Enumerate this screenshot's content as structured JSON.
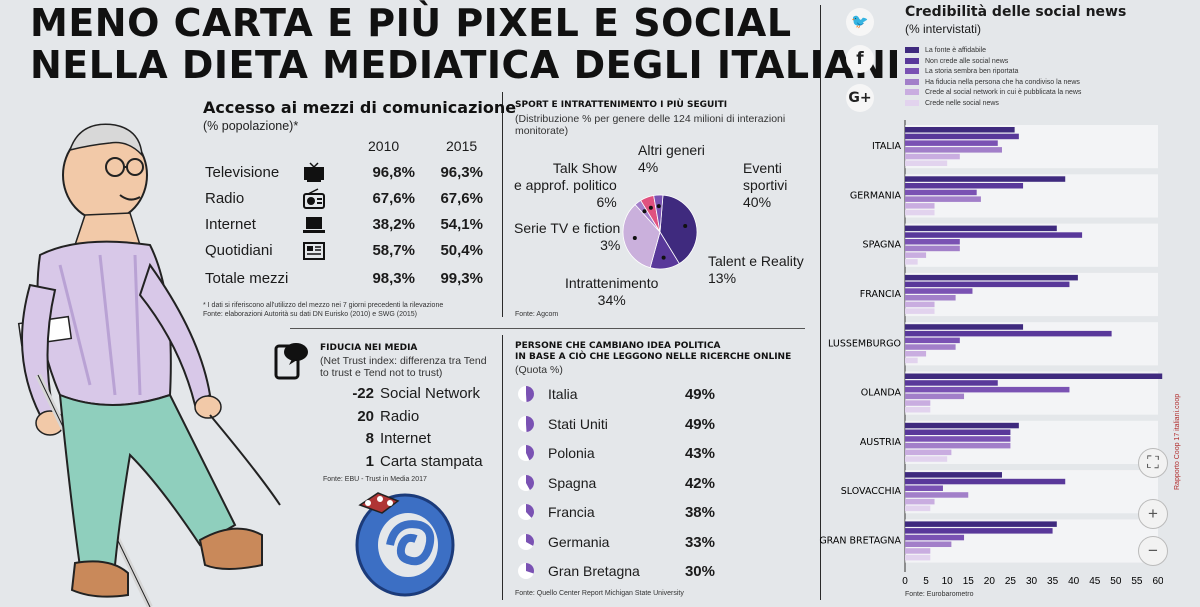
{
  "title": [
    "MENO CARTA E PIÙ PIXEL E SOCIAL",
    "NELLA DIETA MEDIATICA DEGLI ITALIANI"
  ],
  "accesso": {
    "title": "Accesso ai mezzi di comunicazione",
    "subtitle": "(% popolazione)*",
    "years": [
      "2010",
      "2015"
    ],
    "rows": [
      {
        "label": "Televisione",
        "icon": "tv-icon",
        "v2010": "96,8%",
        "v2015": "96,3%"
      },
      {
        "label": "Radio",
        "icon": "radio-icon",
        "v2010": "67,6%",
        "v2015": "67,6%"
      },
      {
        "label": "Internet",
        "icon": "laptop-icon",
        "v2010": "38,2%",
        "v2015": "54,1%"
      },
      {
        "label": "Quotidiani",
        "icon": "newspaper-icon",
        "v2010": "58,7%",
        "v2015": "50,4%"
      },
      {
        "label": "Totale mezzi",
        "icon": "",
        "v2010": "98,3%",
        "v2015": "99,3%"
      }
    ],
    "note1": "* I dati si riferiscono all'utilizzo del mezzo nei 7 giorni precedenti la rilevazione",
    "note2": "Fonte: elaborazioni Autorità su dati DN Eurisko (2010) e SWG (2015)"
  },
  "sport": {
    "title": "SPORT E INTRATTENIMENTO I PIÙ SEGUITI",
    "subtitle": "(Distribuzione % per genere delle 124 milioni di interazioni monitorate)",
    "source": "Fonte: Agcom"
  },
  "fiducia": {
    "title": "FIDUCIA NEI MEDIA",
    "subtitle": "(Net Trust index: differenza tra Tend to trust e Tend not to trust)",
    "items": [
      {
        "value": "-22",
        "label": "Social Network"
      },
      {
        "value": "20",
        "label": "Radio"
      },
      {
        "value": "8",
        "label": "Internet"
      },
      {
        "value": "1",
        "label": "Carta stampata"
      }
    ],
    "source": "Fonte: EBU - Trust in Media 2017"
  },
  "persone": {
    "title1": "PERSONE CHE CAMBIANO IDEA POLITICA",
    "title2": "IN BASE A CIÒ CHE LEGGONO NELLE RICERCHE ONLINE",
    "subtitle": "(Quota %)",
    "items": [
      {
        "country": "Italia",
        "pct": "49%",
        "value": 49
      },
      {
        "country": "Stati Uniti",
        "pct": "49%",
        "value": 49
      },
      {
        "country": "Polonia",
        "pct": "43%",
        "value": 43
      },
      {
        "country": "Spagna",
        "pct": "42%",
        "value": 42
      },
      {
        "country": "Francia",
        "pct": "38%",
        "value": 38
      },
      {
        "country": "Germania",
        "pct": "33%",
        "value": 33
      },
      {
        "country": "Gran Bretagna",
        "pct": "30%",
        "value": 30
      }
    ],
    "source": "Fonte: Quello Center Report Michigan State University"
  },
  "social_icons": [
    "twitter-icon",
    "facebook-icon",
    "google-plus-icon"
  ],
  "social_glyphs": {
    "twitter": "🐦",
    "facebook": "f",
    "gplus": "G+"
  },
  "credibilita": {
    "title": "Credibilità delle social news",
    "subtitle": "(% intervistati)",
    "source": "Fonte: Eurobarometro",
    "side_credit": "Rapporto Coop 17  italiani.coop"
  },
  "zoom": {
    "fit": "⛶",
    "plus": "+",
    "minus": "−"
  },
  "colors": {
    "purple1": "#3f2a7e",
    "purple2": "#59389a",
    "purple3": "#7a52b3",
    "purple4": "#a27fc9",
    "purple5": "#c9ade0",
    "purple6": "#e2d3ee",
    "pie_pink": "#e0517f",
    "pie_light": "#cab0dc"
  },
  "chart_data": [
    {
      "type": "pie",
      "categories": [
        "Eventi sportivi",
        "Talent e Reality",
        "Intrattenimento",
        "Serie TV e fiction",
        "Talk Show e approf. politico",
        "Altri generi"
      ],
      "values": [
        40,
        13,
        34,
        3,
        6,
        4
      ],
      "labels": [
        "Eventi\nsportivi\n40%",
        "Talent e Reality\n13%",
        "Intrattenimento\n34%",
        "Serie TV e fiction\n3%",
        "Talk Show\ne approf. politico\n6%",
        "Altri generi\n4%"
      ]
    },
    {
      "type": "bar",
      "orientation": "horizontal",
      "categories": [
        "ITALIA",
        "GERMANIA",
        "SPAGNA",
        "FRANCIA",
        "LUSSEMBURGO",
        "OLANDA",
        "AUSTRIA",
        "SLOVACCHIA",
        "GRAN BRETAGNA"
      ],
      "xlim": [
        0,
        60
      ],
      "xticks": [
        0,
        5,
        10,
        15,
        20,
        25,
        30,
        35,
        40,
        45,
        50,
        55,
        60
      ],
      "series": [
        {
          "name": "La fonte è affidabile",
          "values": [
            26,
            38,
            36,
            41,
            28,
            61,
            27,
            23,
            36
          ]
        },
        {
          "name": "Non crede alle social news",
          "values": [
            27,
            28,
            42,
            39,
            49,
            22,
            25,
            38,
            35
          ]
        },
        {
          "name": "La storia sembra ben riportata",
          "values": [
            22,
            17,
            13,
            16,
            13,
            39,
            25,
            9,
            14
          ]
        },
        {
          "name": "Ha fiducia nella persona che ha condiviso la news",
          "values": [
            23,
            18,
            13,
            12,
            12,
            14,
            25,
            15,
            11
          ]
        },
        {
          "name": "Crede al social network in cui è pubblicata la news",
          "values": [
            13,
            7,
            5,
            7,
            5,
            6,
            11,
            7,
            6
          ]
        },
        {
          "name": "Crede nelle social news",
          "values": [
            10,
            7,
            3,
            7,
            3,
            6,
            10,
            6,
            6
          ]
        }
      ]
    }
  ]
}
